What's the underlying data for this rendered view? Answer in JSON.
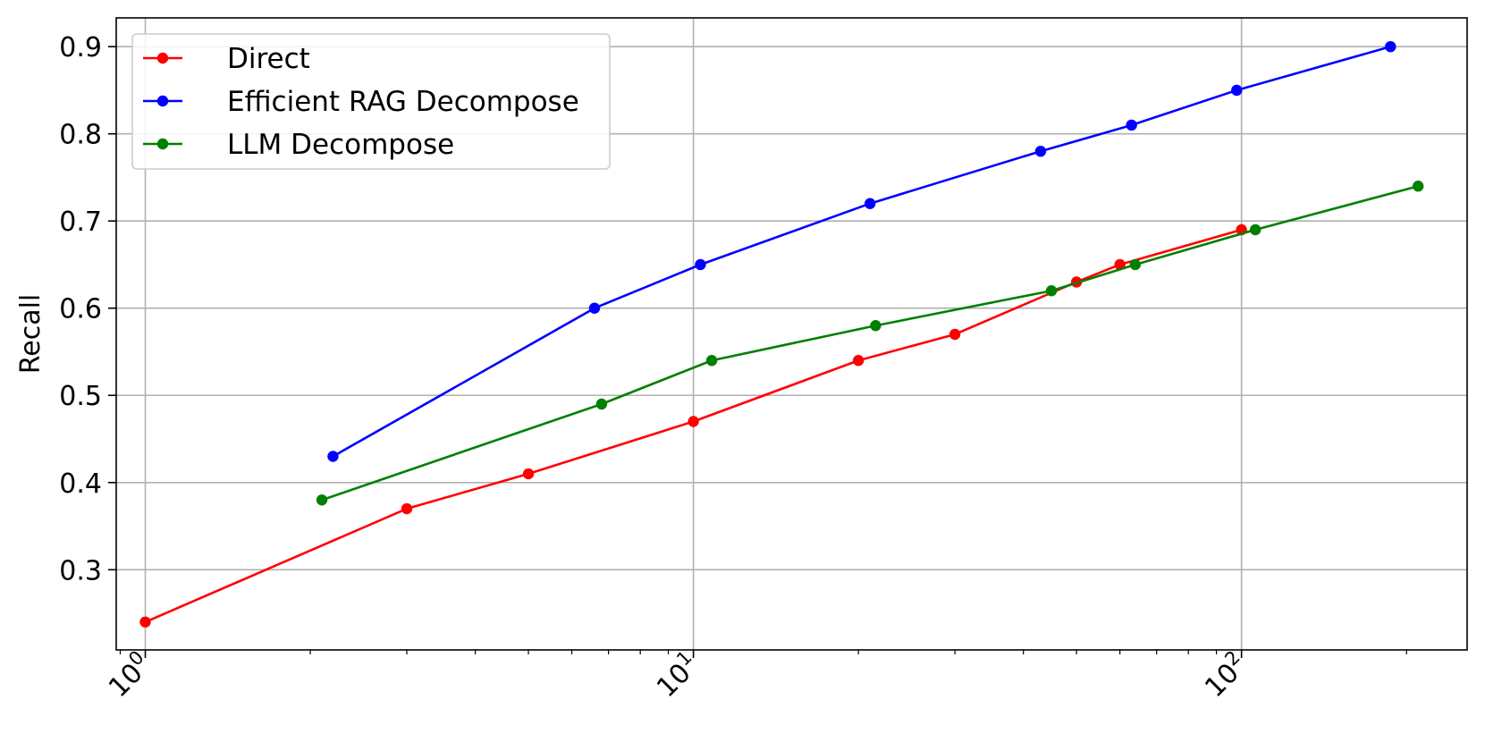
{
  "chart_data": {
    "type": "line",
    "title": "",
    "xlabel": "",
    "ylabel": "Recall",
    "xscale": "log",
    "xlim": [
      0.885,
      258
    ],
    "ylim": [
      0.208,
      0.933
    ],
    "xticks": [
      {
        "value": 1,
        "base": "10",
        "exp": "0"
      },
      {
        "value": 10,
        "base": "10",
        "exp": "1"
      },
      {
        "value": 100,
        "base": "10",
        "exp": "2"
      }
    ],
    "yticks": [
      0.3,
      0.4,
      0.5,
      0.6,
      0.7,
      0.8,
      0.9
    ],
    "ytick_labels": [
      "0.3",
      "0.4",
      "0.5",
      "0.6",
      "0.7",
      "0.8",
      "0.9"
    ],
    "grid": true,
    "legend_position": "top-left",
    "series": [
      {
        "name": "Direct",
        "color": "#ff0000",
        "x": [
          1,
          3,
          5,
          10,
          20,
          30,
          50,
          60,
          100
        ],
        "y": [
          0.24,
          0.37,
          0.41,
          0.47,
          0.54,
          0.57,
          0.63,
          0.65,
          0.69
        ]
      },
      {
        "name": "Efficient RAG Decompose",
        "color": "#0000ff",
        "x": [
          2.2,
          6.6,
          10.3,
          21,
          43,
          63,
          98,
          187
        ],
        "y": [
          0.43,
          0.6,
          0.65,
          0.72,
          0.78,
          0.81,
          0.85,
          0.9
        ]
      },
      {
        "name": "LLM Decompose",
        "color": "#008000",
        "x": [
          2.1,
          6.8,
          10.8,
          21.5,
          45,
          64,
          106,
          210
        ],
        "y": [
          0.38,
          0.49,
          0.54,
          0.58,
          0.62,
          0.65,
          0.69,
          0.74
        ]
      }
    ]
  }
}
